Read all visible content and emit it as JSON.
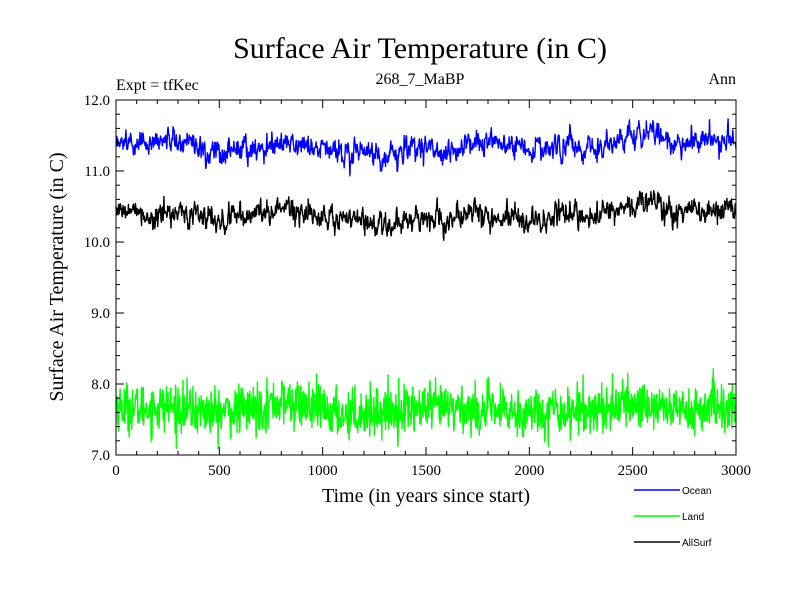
{
  "chart_data": {
    "type": "line",
    "title": "Surface Air Temperature (in C)",
    "subtitle": "268_7_MaBP",
    "left_label": "Expt = tfKec",
    "right_label": "Ann",
    "xlabel": "Time (in years since start)",
    "ylabel": "Surface Air Temperature (in C)",
    "xlim": [
      0,
      3000
    ],
    "ylim": [
      7.0,
      12.0
    ],
    "x_ticks": [
      0,
      500,
      1000,
      1500,
      2000,
      2500,
      3000
    ],
    "x_tick_labels": [
      "0",
      "500",
      "1000",
      "1500",
      "2000",
      "2500",
      "3000"
    ],
    "y_ticks": [
      7.0,
      8.0,
      9.0,
      10.0,
      11.0,
      12.0
    ],
    "y_tick_labels": [
      "7.0",
      "8.0",
      "9.0",
      "10.0",
      "11.0",
      "12.0"
    ],
    "grid": false,
    "legend_position": "bottom-right",
    "series": [
      {
        "name": "Ocean",
        "color": "#0000ff",
        "mean": 11.35,
        "range": [
          10.9,
          11.8
        ],
        "anchors": {
          "x": [
            0,
            100,
            200,
            300,
            400,
            500,
            600,
            700,
            800,
            900,
            1000,
            1100,
            1200,
            1300,
            1400,
            1500,
            1600,
            1700,
            1800,
            1900,
            2000,
            2100,
            2200,
            2300,
            2400,
            2500,
            2600,
            2700,
            2800,
            2900,
            3000
          ],
          "y": [
            11.42,
            11.38,
            11.4,
            11.45,
            11.33,
            11.25,
            11.3,
            11.33,
            11.45,
            11.35,
            11.32,
            11.3,
            11.25,
            11.22,
            11.28,
            11.35,
            11.25,
            11.4,
            11.38,
            11.35,
            11.3,
            11.33,
            11.38,
            11.3,
            11.42,
            11.5,
            11.55,
            11.38,
            11.42,
            11.45,
            11.4
          ]
        }
      },
      {
        "name": "Land",
        "color": "#00ff00",
        "mean": 7.65,
        "range": [
          7.05,
          8.3
        ],
        "anchors": {
          "x": [
            0,
            100,
            200,
            300,
            400,
            500,
            600,
            700,
            800,
            900,
            1000,
            1100,
            1200,
            1300,
            1400,
            1500,
            1600,
            1700,
            1800,
            1900,
            2000,
            2100,
            2200,
            2300,
            2400,
            2500,
            2600,
            2700,
            2800,
            2900,
            3000
          ],
          "y": [
            7.7,
            7.65,
            7.68,
            7.66,
            7.62,
            7.6,
            7.62,
            7.68,
            7.75,
            7.7,
            7.62,
            7.58,
            7.6,
            7.62,
            7.65,
            7.64,
            7.66,
            7.65,
            7.62,
            7.6,
            7.6,
            7.63,
            7.62,
            7.65,
            7.68,
            7.72,
            7.7,
            7.65,
            7.62,
            7.68,
            7.65
          ]
        }
      },
      {
        "name": "AllSurf",
        "color": "#000000",
        "mean": 10.4,
        "range": [
          10.0,
          10.8
        ],
        "anchors": {
          "x": [
            0,
            100,
            200,
            300,
            400,
            500,
            600,
            700,
            800,
            900,
            1000,
            1100,
            1200,
            1300,
            1400,
            1500,
            1600,
            1700,
            1800,
            1900,
            2000,
            2100,
            2200,
            2300,
            2400,
            2500,
            2600,
            2700,
            2800,
            2900,
            3000
          ],
          "y": [
            10.48,
            10.4,
            10.38,
            10.45,
            10.35,
            10.3,
            10.33,
            10.38,
            10.52,
            10.4,
            10.35,
            10.32,
            10.28,
            10.25,
            10.3,
            10.38,
            10.28,
            10.42,
            10.4,
            10.35,
            10.3,
            10.35,
            10.4,
            10.35,
            10.45,
            10.52,
            10.58,
            10.42,
            10.45,
            10.48,
            10.45
          ]
        }
      }
    ]
  }
}
